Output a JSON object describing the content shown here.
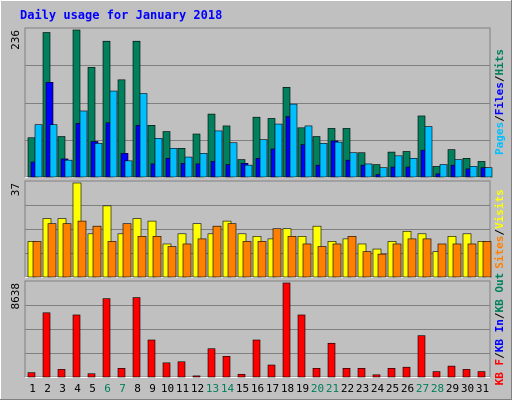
{
  "chart_data": {
    "type": "bar",
    "title": "Daily usage for January 2018",
    "categories": [
      "1",
      "2",
      "3",
      "4",
      "5",
      "6",
      "7",
      "8",
      "9",
      "10",
      "11",
      "12",
      "13",
      "14",
      "15",
      "16",
      "17",
      "18",
      "19",
      "20",
      "21",
      "22",
      "23",
      "24",
      "25",
      "26",
      "27",
      "28",
      "29",
      "30",
      "31"
    ],
    "weekend_days": [
      "6",
      "7",
      "13",
      "14",
      "20",
      "21",
      "27",
      "28"
    ],
    "panels": [
      {
        "id": "hits",
        "ymax_label": "236",
        "ymax": 236,
        "series": [
          {
            "name": "Hits",
            "color": "#00805c",
            "values": [
              63,
              232,
              65,
              236,
              176,
              218,
              156,
              218,
              83,
              73,
              46,
              69,
              101,
              82,
              28,
              96,
              94,
              144,
              79,
              65,
              78,
              78,
              39,
              20,
              40,
              41,
              98,
              17,
              44,
              30,
              25
            ]
          },
          {
            "name": "Files",
            "color": "#0000ff",
            "values": [
              24,
              152,
              29,
              86,
              57,
              87,
              38,
              83,
              21,
              30,
              22,
              21,
              25,
              20,
              22,
              30,
              45,
              97,
              52,
              19,
              58,
              27,
              19,
              4,
              16,
              16,
              43,
              5,
              19,
              13,
              15
            ]
          },
          {
            "name": "Pages",
            "color": "#00bfff",
            "values": [
              84,
              84,
              27,
              106,
              54,
              138,
              26,
              134,
              62,
              46,
              32,
              38,
              74,
              55,
              19,
              60,
              85,
              117,
              82,
              54,
              56,
              39,
              21,
              15,
              34,
              30,
              81,
              20,
              28,
              17,
              15
            ]
          }
        ]
      },
      {
        "id": "visits",
        "ymax_label": "37",
        "ymax": 37,
        "series": [
          {
            "name": "Visits",
            "color": "#ffff00",
            "values": [
              14,
              23,
              23,
              37,
              17,
              28,
              17,
              23,
              22,
              13,
              17,
              21,
              17,
              22,
              17,
              16,
              15,
              19,
              16,
              20,
              14,
              15,
              13,
              11,
              14,
              18,
              17,
              10,
              16,
              17,
              14
            ]
          },
          {
            "name": "Sites",
            "color": "#ff8000",
            "values": [
              14,
              21,
              21,
              22,
              20,
              14,
              21,
              16,
              16,
              12,
              13,
              15,
              20,
              21,
              14,
              14,
              19,
              16,
              13,
              12,
              13,
              16,
              10,
              9,
              13,
              15,
              15,
              13,
              13,
              13,
              14
            ]
          }
        ]
      },
      {
        "id": "kbytes",
        "ymax_label": "8638",
        "ymax": 8638,
        "series": [
          {
            "name": "KBytes",
            "color": "#ff0000",
            "values": [
              400,
              5900,
              700,
              5700,
              300,
              7200,
              800,
              7300,
              3400,
              1300,
              1400,
              100,
              2600,
              1900,
              250,
              3400,
              1100,
              8638,
              5700,
              800,
              3100,
              800,
              800,
              200,
              800,
              900,
              3800,
              500,
              1000,
              700,
              500
            ]
          }
        ]
      }
    ],
    "legends": {
      "hits": [
        {
          "text": "Pages",
          "color": "#00bfff"
        },
        {
          "text": "/",
          "color": "#000000"
        },
        {
          "text": "Files",
          "color": "#0000ff"
        },
        {
          "text": "/",
          "color": "#000000"
        },
        {
          "text": "Hits",
          "color": "#00805c"
        }
      ],
      "visits": [
        {
          "text": "Sites",
          "color": "#ff8000"
        },
        {
          "text": "/",
          "color": "#000000"
        },
        {
          "text": "Visits",
          "color": "#ffff00"
        }
      ],
      "kbytes": [
        {
          "text": "KB F",
          "color": "#ff0000"
        },
        {
          "text": "/",
          "color": "#000000"
        },
        {
          "text": "KB In",
          "color": "#0000ff"
        },
        {
          "text": "/",
          "color": "#000000"
        },
        {
          "text": "KB Out",
          "color": "#00805c"
        }
      ]
    },
    "colors": {
      "background": "#c0c0c0",
      "title": "#0000ff",
      "gridline": "#808080",
      "weekday_label": "#000000",
      "weekend_label": "#00805c"
    }
  }
}
